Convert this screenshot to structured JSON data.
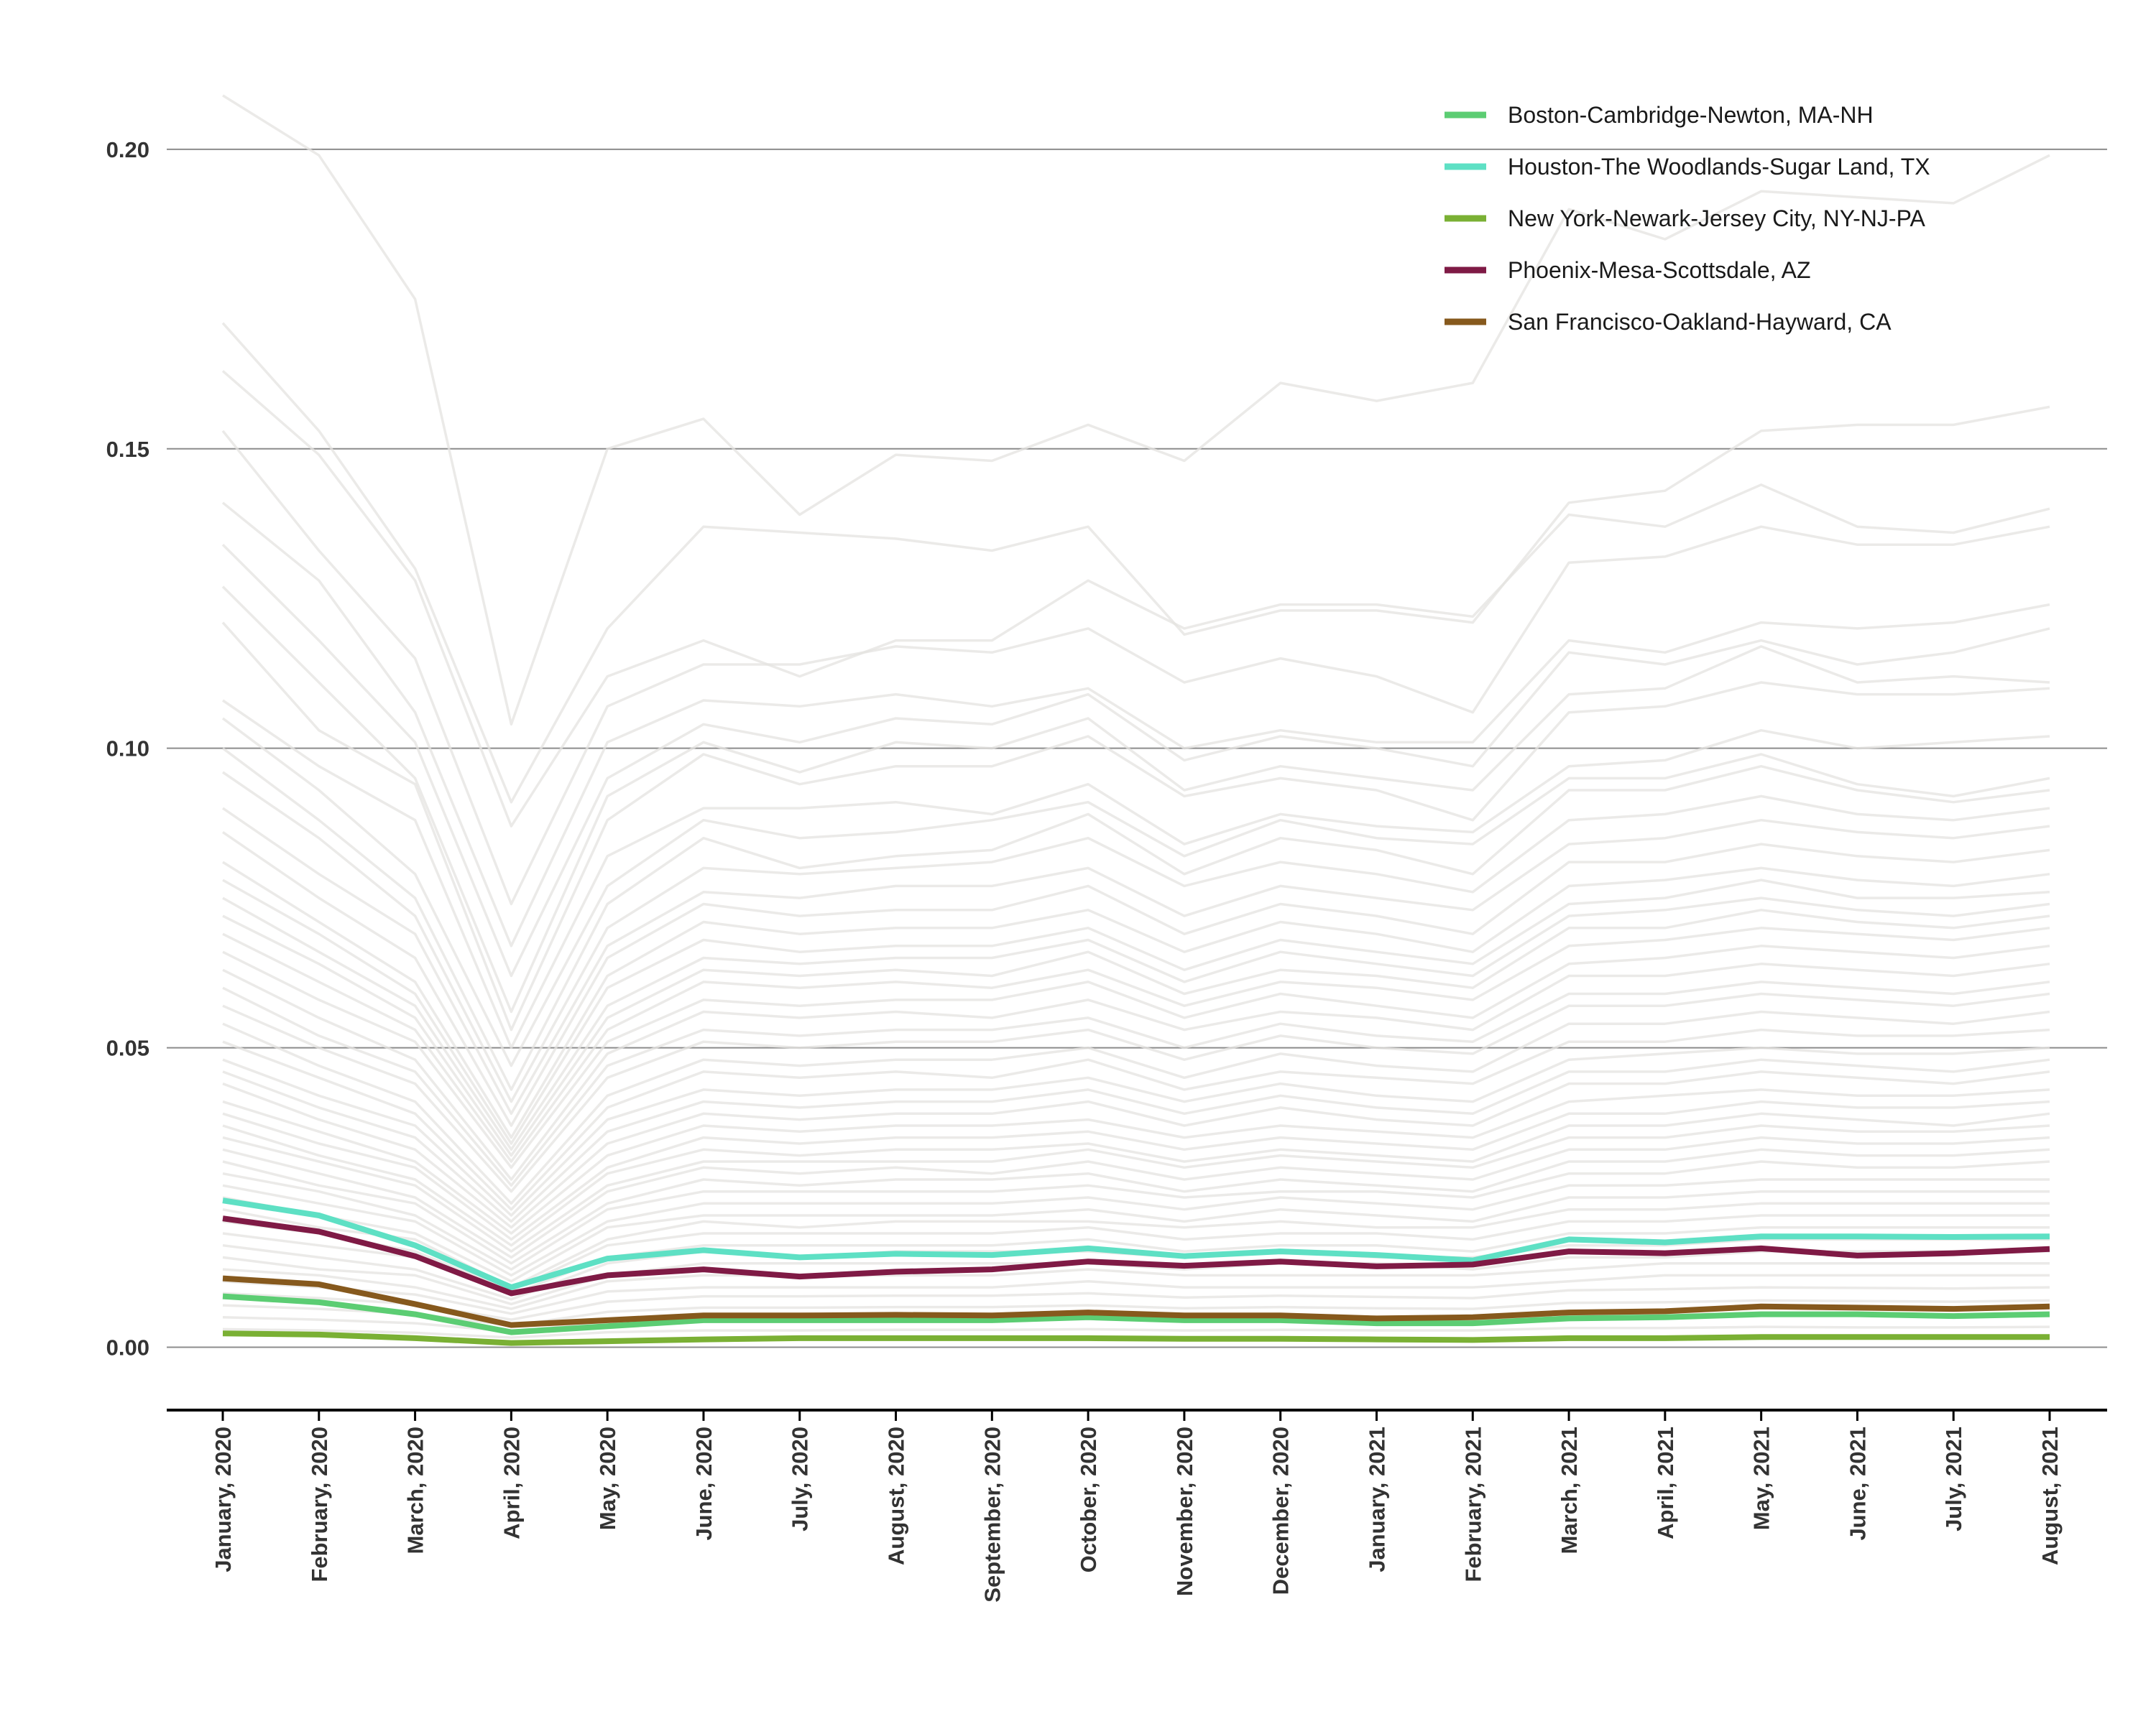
{
  "chart_data": {
    "type": "line",
    "title": "",
    "xlabel": "",
    "ylabel": "",
    "ylim": [
      -0.0105,
      0.2175
    ],
    "grid": "horizontal",
    "legend_position": "top-right",
    "y_ticks": [
      "0.00",
      "0.05",
      "0.10",
      "0.15",
      "0.20"
    ],
    "y_tick_values": [
      0.0,
      0.05,
      0.1,
      0.15,
      0.2
    ],
    "x": [
      "January, 2020",
      "February, 2020",
      "March, 2020",
      "April, 2020",
      "May, 2020",
      "June, 2020",
      "July, 2020",
      "August, 2020",
      "September, 2020",
      "October, 2020",
      "November, 2020",
      "December, 2020",
      "January, 2021",
      "February, 2021",
      "March, 2021",
      "April, 2021",
      "May, 2021",
      "June, 2021",
      "July, 2021",
      "August, 2021"
    ],
    "background_series_color": "#e4e3e0",
    "background_series": [
      [
        0.209,
        0.199,
        0.175,
        0.104,
        0.15,
        0.155,
        0.139,
        0.149,
        0.148,
        0.154,
        0.148,
        0.161,
        0.158,
        0.161,
        0.19,
        0.185,
        0.193,
        0.192,
        0.191,
        0.199
      ],
      [
        0.171,
        0.153,
        0.13,
        0.091,
        0.12,
        0.137,
        0.136,
        0.135,
        0.133,
        0.137,
        0.119,
        0.123,
        0.123,
        0.121,
        0.141,
        0.143,
        0.153,
        0.154,
        0.154,
        0.157
      ],
      [
        0.163,
        0.149,
        0.128,
        0.087,
        0.112,
        0.118,
        0.112,
        0.118,
        0.118,
        0.128,
        0.12,
        0.124,
        0.124,
        0.122,
        0.139,
        0.137,
        0.144,
        0.137,
        0.136,
        0.14
      ],
      [
        0.153,
        0.133,
        0.115,
        0.074,
        0.107,
        0.114,
        0.114,
        0.117,
        0.116,
        0.12,
        0.111,
        0.115,
        0.112,
        0.106,
        0.131,
        0.132,
        0.137,
        0.134,
        0.134,
        0.137
      ],
      [
        0.141,
        0.128,
        0.106,
        0.067,
        0.101,
        0.108,
        0.107,
        0.109,
        0.107,
        0.11,
        0.1,
        0.103,
        0.101,
        0.101,
        0.118,
        0.116,
        0.121,
        0.12,
        0.121,
        0.124
      ],
      [
        0.134,
        0.118,
        0.101,
        0.062,
        0.095,
        0.104,
        0.101,
        0.105,
        0.104,
        0.109,
        0.098,
        0.102,
        0.1,
        0.097,
        0.116,
        0.114,
        0.118,
        0.114,
        0.116,
        0.12
      ],
      [
        0.127,
        0.111,
        0.095,
        0.056,
        0.092,
        0.101,
        0.096,
        0.101,
        0.1,
        0.105,
        0.093,
        0.097,
        0.095,
        0.093,
        0.109,
        0.11,
        0.117,
        0.111,
        0.112,
        0.111
      ],
      [
        0.121,
        0.103,
        0.094,
        0.053,
        0.088,
        0.099,
        0.094,
        0.097,
        0.097,
        0.102,
        0.092,
        0.095,
        0.093,
        0.088,
        0.106,
        0.107,
        0.111,
        0.109,
        0.109,
        0.11
      ],
      [
        0.108,
        0.097,
        0.088,
        0.05,
        0.082,
        0.09,
        0.09,
        0.091,
        0.089,
        0.094,
        0.084,
        0.089,
        0.087,
        0.086,
        0.097,
        0.098,
        0.103,
        0.1,
        0.101,
        0.102
      ],
      [
        0.105,
        0.093,
        0.079,
        0.047,
        0.077,
        0.088,
        0.085,
        0.086,
        0.088,
        0.091,
        0.082,
        0.088,
        0.085,
        0.084,
        0.095,
        0.095,
        0.099,
        0.094,
        0.092,
        0.095
      ],
      [
        0.1,
        0.088,
        0.075,
        0.043,
        0.074,
        0.085,
        0.08,
        0.082,
        0.083,
        0.089,
        0.079,
        0.085,
        0.083,
        0.079,
        0.093,
        0.093,
        0.097,
        0.093,
        0.091,
        0.093
      ],
      [
        0.096,
        0.085,
        0.072,
        0.041,
        0.07,
        0.08,
        0.079,
        0.08,
        0.081,
        0.085,
        0.077,
        0.081,
        0.079,
        0.076,
        0.088,
        0.089,
        0.092,
        0.089,
        0.088,
        0.09
      ],
      [
        0.09,
        0.079,
        0.069,
        0.039,
        0.067,
        0.076,
        0.075,
        0.077,
        0.077,
        0.08,
        0.072,
        0.077,
        0.075,
        0.073,
        0.084,
        0.085,
        0.088,
        0.086,
        0.085,
        0.087
      ],
      [
        0.086,
        0.075,
        0.065,
        0.037,
        0.065,
        0.074,
        0.072,
        0.073,
        0.073,
        0.077,
        0.069,
        0.074,
        0.072,
        0.069,
        0.081,
        0.081,
        0.084,
        0.082,
        0.081,
        0.083
      ],
      [
        0.081,
        0.071,
        0.061,
        0.035,
        0.062,
        0.071,
        0.069,
        0.07,
        0.07,
        0.073,
        0.066,
        0.071,
        0.069,
        0.066,
        0.077,
        0.078,
        0.08,
        0.078,
        0.077,
        0.079
      ],
      [
        0.078,
        0.069,
        0.059,
        0.034,
        0.06,
        0.068,
        0.066,
        0.067,
        0.067,
        0.07,
        0.063,
        0.068,
        0.066,
        0.064,
        0.074,
        0.075,
        0.078,
        0.075,
        0.075,
        0.076
      ],
      [
        0.075,
        0.066,
        0.057,
        0.033,
        0.057,
        0.065,
        0.064,
        0.065,
        0.065,
        0.068,
        0.061,
        0.066,
        0.064,
        0.062,
        0.072,
        0.073,
        0.075,
        0.073,
        0.072,
        0.074
      ],
      [
        0.072,
        0.064,
        0.055,
        0.032,
        0.055,
        0.063,
        0.062,
        0.063,
        0.062,
        0.066,
        0.059,
        0.063,
        0.062,
        0.06,
        0.07,
        0.07,
        0.073,
        0.071,
        0.07,
        0.072
      ],
      [
        0.069,
        0.061,
        0.053,
        0.031,
        0.053,
        0.061,
        0.06,
        0.061,
        0.06,
        0.063,
        0.057,
        0.061,
        0.06,
        0.058,
        0.067,
        0.068,
        0.07,
        0.069,
        0.068,
        0.07
      ],
      [
        0.066,
        0.058,
        0.051,
        0.03,
        0.051,
        0.058,
        0.057,
        0.058,
        0.058,
        0.061,
        0.055,
        0.059,
        0.057,
        0.055,
        0.064,
        0.065,
        0.067,
        0.066,
        0.065,
        0.067
      ],
      [
        0.063,
        0.055,
        0.048,
        0.028,
        0.049,
        0.056,
        0.055,
        0.056,
        0.055,
        0.058,
        0.053,
        0.056,
        0.055,
        0.053,
        0.062,
        0.062,
        0.064,
        0.063,
        0.062,
        0.064
      ],
      [
        0.06,
        0.052,
        0.046,
        0.027,
        0.047,
        0.053,
        0.052,
        0.053,
        0.053,
        0.055,
        0.05,
        0.054,
        0.052,
        0.051,
        0.059,
        0.059,
        0.061,
        0.06,
        0.059,
        0.061
      ],
      [
        0.057,
        0.05,
        0.044,
        0.026,
        0.045,
        0.051,
        0.05,
        0.051,
        0.051,
        0.053,
        0.048,
        0.052,
        0.05,
        0.049,
        0.057,
        0.057,
        0.059,
        0.058,
        0.057,
        0.059
      ],
      [
        0.054,
        0.047,
        0.041,
        0.024,
        0.042,
        0.048,
        0.047,
        0.048,
        0.048,
        0.05,
        0.045,
        0.049,
        0.047,
        0.046,
        0.054,
        0.054,
        0.056,
        0.055,
        0.054,
        0.056
      ],
      [
        0.051,
        0.045,
        0.039,
        0.023,
        0.04,
        0.046,
        0.045,
        0.046,
        0.045,
        0.048,
        0.043,
        0.046,
        0.045,
        0.044,
        0.051,
        0.051,
        0.053,
        0.052,
        0.052,
        0.053
      ],
      [
        0.048,
        0.042,
        0.037,
        0.022,
        0.038,
        0.043,
        0.042,
        0.043,
        0.043,
        0.045,
        0.041,
        0.044,
        0.042,
        0.041,
        0.048,
        0.049,
        0.05,
        0.049,
        0.049,
        0.05
      ],
      [
        0.046,
        0.04,
        0.035,
        0.021,
        0.036,
        0.041,
        0.04,
        0.041,
        0.041,
        0.043,
        0.039,
        0.042,
        0.04,
        0.039,
        0.046,
        0.046,
        0.048,
        0.047,
        0.046,
        0.048
      ],
      [
        0.044,
        0.038,
        0.033,
        0.02,
        0.034,
        0.039,
        0.038,
        0.039,
        0.039,
        0.041,
        0.037,
        0.04,
        0.038,
        0.037,
        0.044,
        0.044,
        0.046,
        0.045,
        0.044,
        0.046
      ],
      [
        0.041,
        0.036,
        0.031,
        0.019,
        0.032,
        0.037,
        0.036,
        0.037,
        0.037,
        0.038,
        0.035,
        0.037,
        0.036,
        0.035,
        0.041,
        0.042,
        0.043,
        0.042,
        0.042,
        0.043
      ],
      [
        0.039,
        0.034,
        0.03,
        0.018,
        0.03,
        0.035,
        0.034,
        0.035,
        0.035,
        0.036,
        0.033,
        0.035,
        0.034,
        0.033,
        0.039,
        0.039,
        0.041,
        0.04,
        0.04,
        0.041
      ],
      [
        0.037,
        0.032,
        0.028,
        0.017,
        0.029,
        0.033,
        0.032,
        0.033,
        0.033,
        0.034,
        0.031,
        0.033,
        0.032,
        0.031,
        0.037,
        0.037,
        0.039,
        0.038,
        0.037,
        0.039
      ],
      [
        0.035,
        0.031,
        0.027,
        0.016,
        0.027,
        0.031,
        0.031,
        0.031,
        0.031,
        0.033,
        0.03,
        0.032,
        0.031,
        0.03,
        0.035,
        0.035,
        0.037,
        0.036,
        0.036,
        0.037
      ],
      [
        0.033,
        0.029,
        0.025,
        0.015,
        0.026,
        0.03,
        0.029,
        0.03,
        0.029,
        0.031,
        0.028,
        0.03,
        0.029,
        0.028,
        0.033,
        0.033,
        0.035,
        0.034,
        0.034,
        0.035
      ],
      [
        0.031,
        0.027,
        0.024,
        0.014,
        0.024,
        0.028,
        0.027,
        0.028,
        0.028,
        0.029,
        0.026,
        0.028,
        0.027,
        0.026,
        0.031,
        0.031,
        0.033,
        0.032,
        0.032,
        0.033
      ],
      [
        0.029,
        0.026,
        0.022,
        0.013,
        0.023,
        0.026,
        0.026,
        0.026,
        0.026,
        0.027,
        0.025,
        0.026,
        0.026,
        0.025,
        0.029,
        0.029,
        0.031,
        0.03,
        0.03,
        0.031
      ],
      [
        0.027,
        0.024,
        0.021,
        0.012,
        0.021,
        0.024,
        0.024,
        0.024,
        0.024,
        0.025,
        0.023,
        0.025,
        0.024,
        0.023,
        0.027,
        0.027,
        0.028,
        0.028,
        0.028,
        0.028
      ],
      [
        0.025,
        0.022,
        0.019,
        0.011,
        0.02,
        0.022,
        0.022,
        0.022,
        0.022,
        0.023,
        0.021,
        0.023,
        0.022,
        0.021,
        0.025,
        0.025,
        0.026,
        0.026,
        0.026,
        0.026
      ],
      [
        0.023,
        0.02,
        0.018,
        0.01,
        0.018,
        0.021,
        0.02,
        0.021,
        0.021,
        0.021,
        0.02,
        0.021,
        0.02,
        0.02,
        0.023,
        0.023,
        0.024,
        0.024,
        0.024,
        0.024
      ],
      [
        0.021,
        0.019,
        0.016,
        0.0095,
        0.017,
        0.019,
        0.019,
        0.019,
        0.019,
        0.02,
        0.018,
        0.019,
        0.019,
        0.018,
        0.021,
        0.021,
        0.022,
        0.022,
        0.022,
        0.022
      ],
      [
        0.019,
        0.017,
        0.015,
        0.0088,
        0.015,
        0.017,
        0.017,
        0.017,
        0.017,
        0.018,
        0.016,
        0.017,
        0.017,
        0.016,
        0.019,
        0.019,
        0.02,
        0.02,
        0.02,
        0.02
      ],
      [
        0.017,
        0.015,
        0.013,
        0.008,
        0.014,
        0.016,
        0.015,
        0.016,
        0.016,
        0.016,
        0.015,
        0.016,
        0.015,
        0.015,
        0.017,
        0.017,
        0.018,
        0.018,
        0.018,
        0.018
      ],
      [
        0.015,
        0.013,
        0.012,
        0.0072,
        0.012,
        0.014,
        0.014,
        0.014,
        0.014,
        0.014,
        0.013,
        0.014,
        0.014,
        0.013,
        0.015,
        0.015,
        0.016,
        0.016,
        0.016,
        0.016
      ],
      [
        0.013,
        0.012,
        0.01,
        0.0064,
        0.011,
        0.012,
        0.012,
        0.012,
        0.012,
        0.013,
        0.012,
        0.012,
        0.012,
        0.012,
        0.013,
        0.014,
        0.014,
        0.014,
        0.014,
        0.014
      ],
      [
        0.011,
        0.01,
        0.0088,
        0.0056,
        0.0093,
        0.01,
        0.01,
        0.01,
        0.01,
        0.011,
        0.01,
        0.01,
        0.01,
        0.01,
        0.011,
        0.012,
        0.012,
        0.012,
        0.012,
        0.012
      ],
      [
        0.009,
        0.0082,
        0.0072,
        0.0046,
        0.0076,
        0.0085,
        0.0085,
        0.0086,
        0.0086,
        0.009,
        0.0083,
        0.0086,
        0.0084,
        0.0082,
        0.0095,
        0.0097,
        0.01,
        0.0099,
        0.0098,
        0.01
      ],
      [
        0.007,
        0.0064,
        0.0056,
        0.0036,
        0.0059,
        0.0066,
        0.0066,
        0.0067,
        0.0067,
        0.007,
        0.0065,
        0.0067,
        0.0065,
        0.0064,
        0.0074,
        0.0075,
        0.0078,
        0.0077,
        0.0076,
        0.0078
      ],
      [
        0.005,
        0.0046,
        0.004,
        0.0026,
        0.0042,
        0.0047,
        0.0047,
        0.0048,
        0.0048,
        0.005,
        0.0046,
        0.0048,
        0.0047,
        0.0046,
        0.0053,
        0.0054,
        0.0056,
        0.0055,
        0.0054,
        0.0056
      ],
      [
        0.003,
        0.0028,
        0.0024,
        0.0016,
        0.0025,
        0.0028,
        0.0028,
        0.0029,
        0.0029,
        0.003,
        0.0028,
        0.0029,
        0.0028,
        0.0028,
        0.0032,
        0.0032,
        0.0034,
        0.0033,
        0.0033,
        0.0034
      ]
    ],
    "series": [
      {
        "name": "Boston-Cambridge-Newton, MA-NH",
        "color": "#5ccd73",
        "values": [
          0.0085,
          0.0075,
          0.0055,
          0.0025,
          0.0035,
          0.0045,
          0.0045,
          0.0045,
          0.0045,
          0.005,
          0.0045,
          0.0045,
          0.004,
          0.004,
          0.0048,
          0.005,
          0.0055,
          0.0055,
          0.0052,
          0.0055
        ]
      },
      {
        "name": "Houston-The Woodlands-Sugar Land, TX",
        "color": "#5ee0c4",
        "values": [
          0.0245,
          0.022,
          0.017,
          0.01,
          0.0148,
          0.0162,
          0.015,
          0.0156,
          0.0154,
          0.0165,
          0.0152,
          0.016,
          0.0154,
          0.0145,
          0.018,
          0.0175,
          0.0185,
          0.0185,
          0.0184,
          0.0185
        ]
      },
      {
        "name": "New York-Newark-Jersey City, NY-NJ-PA",
        "color": "#7ab034",
        "values": [
          0.0023,
          0.0021,
          0.0015,
          0.0007,
          0.001,
          0.0013,
          0.0015,
          0.0015,
          0.0015,
          0.0015,
          0.0014,
          0.0014,
          0.0013,
          0.0012,
          0.0015,
          0.0015,
          0.0017,
          0.0017,
          0.0017,
          0.0017
        ]
      },
      {
        "name": "Phoenix-Mesa-Scottsdale, AZ",
        "color": "#7f1a45",
        "values": [
          0.0215,
          0.0193,
          0.0152,
          0.009,
          0.012,
          0.013,
          0.0118,
          0.0126,
          0.013,
          0.0143,
          0.0136,
          0.0143,
          0.0135,
          0.0138,
          0.016,
          0.0157,
          0.0165,
          0.0153,
          0.0157,
          0.0164
        ]
      },
      {
        "name": "San Francisco-Oakland-Hayward, CA",
        "color": "#86591d",
        "values": [
          0.0115,
          0.0105,
          0.0072,
          0.0037,
          0.0045,
          0.0053,
          0.0053,
          0.0054,
          0.0053,
          0.0058,
          0.0053,
          0.0053,
          0.0048,
          0.005,
          0.0058,
          0.006,
          0.0068,
          0.0066,
          0.0064,
          0.0068
        ]
      }
    ]
  }
}
